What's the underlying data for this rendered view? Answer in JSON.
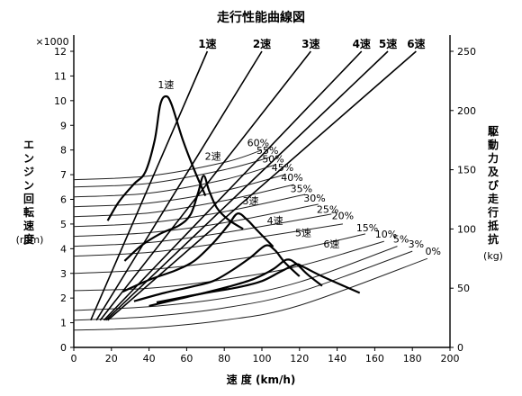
{
  "chart_data": {
    "type": "line",
    "title": "走行性能曲線図",
    "xlabel": "速 度 (km/h)",
    "ylabel_left": [
      "エ",
      "ン",
      "ジ",
      "ン",
      "回",
      "転",
      "速",
      "度"
    ],
    "ylabel_left_unit": "(rpm)",
    "ylabel_right": [
      "駆",
      "動",
      "力",
      "及",
      "び",
      "走",
      "行",
      "抵",
      "抗"
    ],
    "ylabel_right_unit": "(kg)",
    "y_left_multiplier": "×1000",
    "xlim": [
      0,
      200
    ],
    "ylim_left": [
      0,
      12
    ],
    "ylim_right": [
      0,
      250
    ],
    "x_ticks": [
      "0",
      "20",
      "40",
      "60",
      "80",
      "100",
      "120",
      "140",
      "160",
      "180",
      "200"
    ],
    "y_left_ticks": [
      "0",
      "1",
      "2",
      "3",
      "4",
      "5",
      "6",
      "7",
      "8",
      "9",
      "10",
      "11",
      "12"
    ],
    "y_right_ticks": [
      "0",
      "50",
      "100",
      "150",
      "200",
      "250"
    ],
    "gears": [
      {
        "name": "1速",
        "top_x": 71,
        "top_y": 12
      },
      {
        "name": "2速",
        "top_x": 100,
        "top_y": 12
      },
      {
        "name": "3速",
        "top_x": 126,
        "top_y": 12
      },
      {
        "name": "4速",
        "top_x": 153,
        "top_y": 12
      },
      {
        "name": "5速",
        "top_x": 167,
        "top_y": 12
      },
      {
        "name": "6速",
        "top_x": 182,
        "top_y": 12
      }
    ],
    "speed_lines": [
      {
        "name": "1速",
        "points": [
          [
            9,
            1.1
          ],
          [
            71,
            12
          ]
        ]
      },
      {
        "name": "2速",
        "points": [
          [
            12,
            1.1
          ],
          [
            100,
            12
          ]
        ]
      },
      {
        "name": "3速",
        "points": [
          [
            14,
            1.1
          ],
          [
            126,
            12
          ]
        ]
      },
      {
        "name": "4速",
        "points": [
          [
            16,
            1.1
          ],
          [
            153,
            12
          ]
        ]
      },
      {
        "name": "5速",
        "points": [
          [
            17,
            1.1
          ],
          [
            167,
            12
          ]
        ]
      },
      {
        "name": "6速",
        "points": [
          [
            18,
            1.1
          ],
          [
            182,
            12
          ]
        ]
      }
    ],
    "drive_force_series": [
      {
        "name": "1速",
        "points": [
          [
            18,
            107
          ],
          [
            24,
            123
          ],
          [
            32,
            138
          ],
          [
            38,
            148
          ],
          [
            43,
            175
          ],
          [
            46,
            205
          ],
          [
            49,
            212
          ],
          [
            52,
            205
          ],
          [
            58,
            175
          ],
          [
            64,
            150
          ],
          [
            70,
            128
          ]
        ]
      },
      {
        "name": "2速",
        "points": [
          [
            27,
            73
          ],
          [
            36,
            86
          ],
          [
            46,
            96
          ],
          [
            56,
            103
          ],
          [
            62,
            112
          ],
          [
            66,
            130
          ],
          [
            69,
            145
          ],
          [
            72,
            132
          ],
          [
            76,
            118
          ],
          [
            82,
            108
          ],
          [
            90,
            100
          ]
        ]
      },
      {
        "name": "3速",
        "points": [
          [
            26,
            47
          ],
          [
            40,
            57
          ],
          [
            54,
            65
          ],
          [
            64,
            73
          ],
          [
            74,
            88
          ],
          [
            82,
            103
          ],
          [
            87,
            113
          ],
          [
            92,
            108
          ],
          [
            98,
            98
          ],
          [
            106,
            85
          ]
        ]
      },
      {
        "name": "4速",
        "points": [
          [
            32,
            39
          ],
          [
            48,
            46
          ],
          [
            62,
            51
          ],
          [
            74,
            56
          ],
          [
            84,
            65
          ],
          [
            94,
            76
          ],
          [
            102,
            86
          ],
          [
            107,
            82
          ],
          [
            112,
            72
          ],
          [
            120,
            60
          ]
        ]
      },
      {
        "name": "5速",
        "points": [
          [
            40,
            35
          ],
          [
            56,
            41
          ],
          [
            72,
            47
          ],
          [
            84,
            52
          ],
          [
            96,
            58
          ],
          [
            106,
            66
          ],
          [
            113,
            74
          ],
          [
            118,
            71
          ],
          [
            124,
            62
          ],
          [
            132,
            52
          ]
        ]
      },
      {
        "name": "6速",
        "points": [
          [
            44,
            38
          ],
          [
            60,
            43
          ],
          [
            74,
            47
          ],
          [
            88,
            51
          ],
          [
            100,
            56
          ],
          [
            110,
            64
          ],
          [
            118,
            70
          ],
          [
            122,
            68
          ],
          [
            132,
            60
          ],
          [
            152,
            46
          ]
        ]
      }
    ],
    "resistance_series": [
      {
        "name": "60%",
        "points": [
          [
            0,
            6.8
          ],
          [
            40,
            6.95
          ],
          [
            80,
            7.5
          ],
          [
            100,
            8.0
          ]
        ]
      },
      {
        "name": "55%",
        "points": [
          [
            0,
            6.5
          ],
          [
            40,
            6.65
          ],
          [
            80,
            7.2
          ],
          [
            104,
            7.7
          ]
        ]
      },
      {
        "name": "50%",
        "points": [
          [
            0,
            6.1
          ],
          [
            40,
            6.25
          ],
          [
            80,
            6.8
          ],
          [
            107,
            7.4
          ]
        ]
      },
      {
        "name": "45%",
        "points": [
          [
            0,
            5.7
          ],
          [
            40,
            5.85
          ],
          [
            80,
            6.35
          ],
          [
            112,
            7.0
          ]
        ]
      },
      {
        "name": "40%",
        "points": [
          [
            0,
            5.3
          ],
          [
            40,
            5.45
          ],
          [
            80,
            5.95
          ],
          [
            117,
            6.6
          ]
        ]
      },
      {
        "name": "35%",
        "points": [
          [
            0,
            4.9
          ],
          [
            40,
            5.05
          ],
          [
            80,
            5.5
          ],
          [
            123,
            6.2
          ]
        ]
      },
      {
        "name": "30%",
        "points": [
          [
            0,
            4.5
          ],
          [
            40,
            4.65
          ],
          [
            80,
            5.05
          ],
          [
            130,
            5.8
          ]
        ]
      },
      {
        "name": "25%",
        "points": [
          [
            0,
            4.1
          ],
          [
            40,
            4.25
          ],
          [
            80,
            4.65
          ],
          [
            137,
            5.4
          ]
        ]
      },
      {
        "name": "20%",
        "points": [
          [
            0,
            3.7
          ],
          [
            40,
            3.85
          ],
          [
            80,
            4.25
          ],
          [
            143,
            5.0
          ]
        ]
      },
      {
        "name": "15%",
        "points": [
          [
            0,
            3.0
          ],
          [
            40,
            3.15
          ],
          [
            80,
            3.5
          ],
          [
            120,
            4.0
          ],
          [
            155,
            4.6
          ]
        ]
      },
      {
        "name": "10%",
        "points": [
          [
            0,
            2.3
          ],
          [
            40,
            2.4
          ],
          [
            80,
            2.75
          ],
          [
            120,
            3.3
          ],
          [
            165,
            4.3
          ]
        ]
      },
      {
        "name": "5%",
        "points": [
          [
            0,
            1.5
          ],
          [
            40,
            1.65
          ],
          [
            80,
            2.0
          ],
          [
            120,
            2.65
          ],
          [
            172,
            4.1
          ]
        ]
      },
      {
        "name": "3%",
        "points": [
          [
            0,
            1.1
          ],
          [
            40,
            1.25
          ],
          [
            80,
            1.6
          ],
          [
            120,
            2.25
          ],
          [
            180,
            3.9
          ]
        ]
      },
      {
        "name": "0%",
        "points": [
          [
            0,
            0.7
          ],
          [
            40,
            0.8
          ],
          [
            80,
            1.1
          ],
          [
            120,
            1.7
          ],
          [
            188,
            3.6
          ]
        ]
      }
    ],
    "resistance_labels": [
      {
        "text": "60%",
        "x": 98,
        "y": 8.15
      },
      {
        "text": "55%",
        "x": 103,
        "y": 7.85
      },
      {
        "text": "50%",
        "x": 106,
        "y": 7.5
      },
      {
        "text": "45%",
        "x": 111,
        "y": 7.15
      },
      {
        "text": "40%",
        "x": 116,
        "y": 6.75
      },
      {
        "text": "35%",
        "x": 121,
        "y": 6.3
      },
      {
        "text": "30%",
        "x": 128,
        "y": 5.9
      },
      {
        "text": "25%",
        "x": 135,
        "y": 5.45
      },
      {
        "text": "20%",
        "x": 143,
        "y": 5.2
      },
      {
        "text": "15%",
        "x": 156,
        "y": 4.7
      },
      {
        "text": "10%",
        "x": 166,
        "y": 4.45
      },
      {
        "text": "5%",
        "x": 174,
        "y": 4.25
      },
      {
        "text": "3%",
        "x": 182,
        "y": 4.05
      },
      {
        "text": "0%",
        "x": 191,
        "y": 3.75
      }
    ],
    "curve_labels": [
      {
        "text": "1速",
        "x": 49,
        "y": 10.5
      },
      {
        "text": "2速",
        "x": 74,
        "y": 7.6
      },
      {
        "text": "3速",
        "x": 94,
        "y": 5.8
      },
      {
        "text": "4速",
        "x": 107,
        "y": 5.0
      },
      {
        "text": "5速",
        "x": 122,
        "y": 4.5
      },
      {
        "text": "6速",
        "x": 137,
        "y": 4.05
      }
    ]
  }
}
